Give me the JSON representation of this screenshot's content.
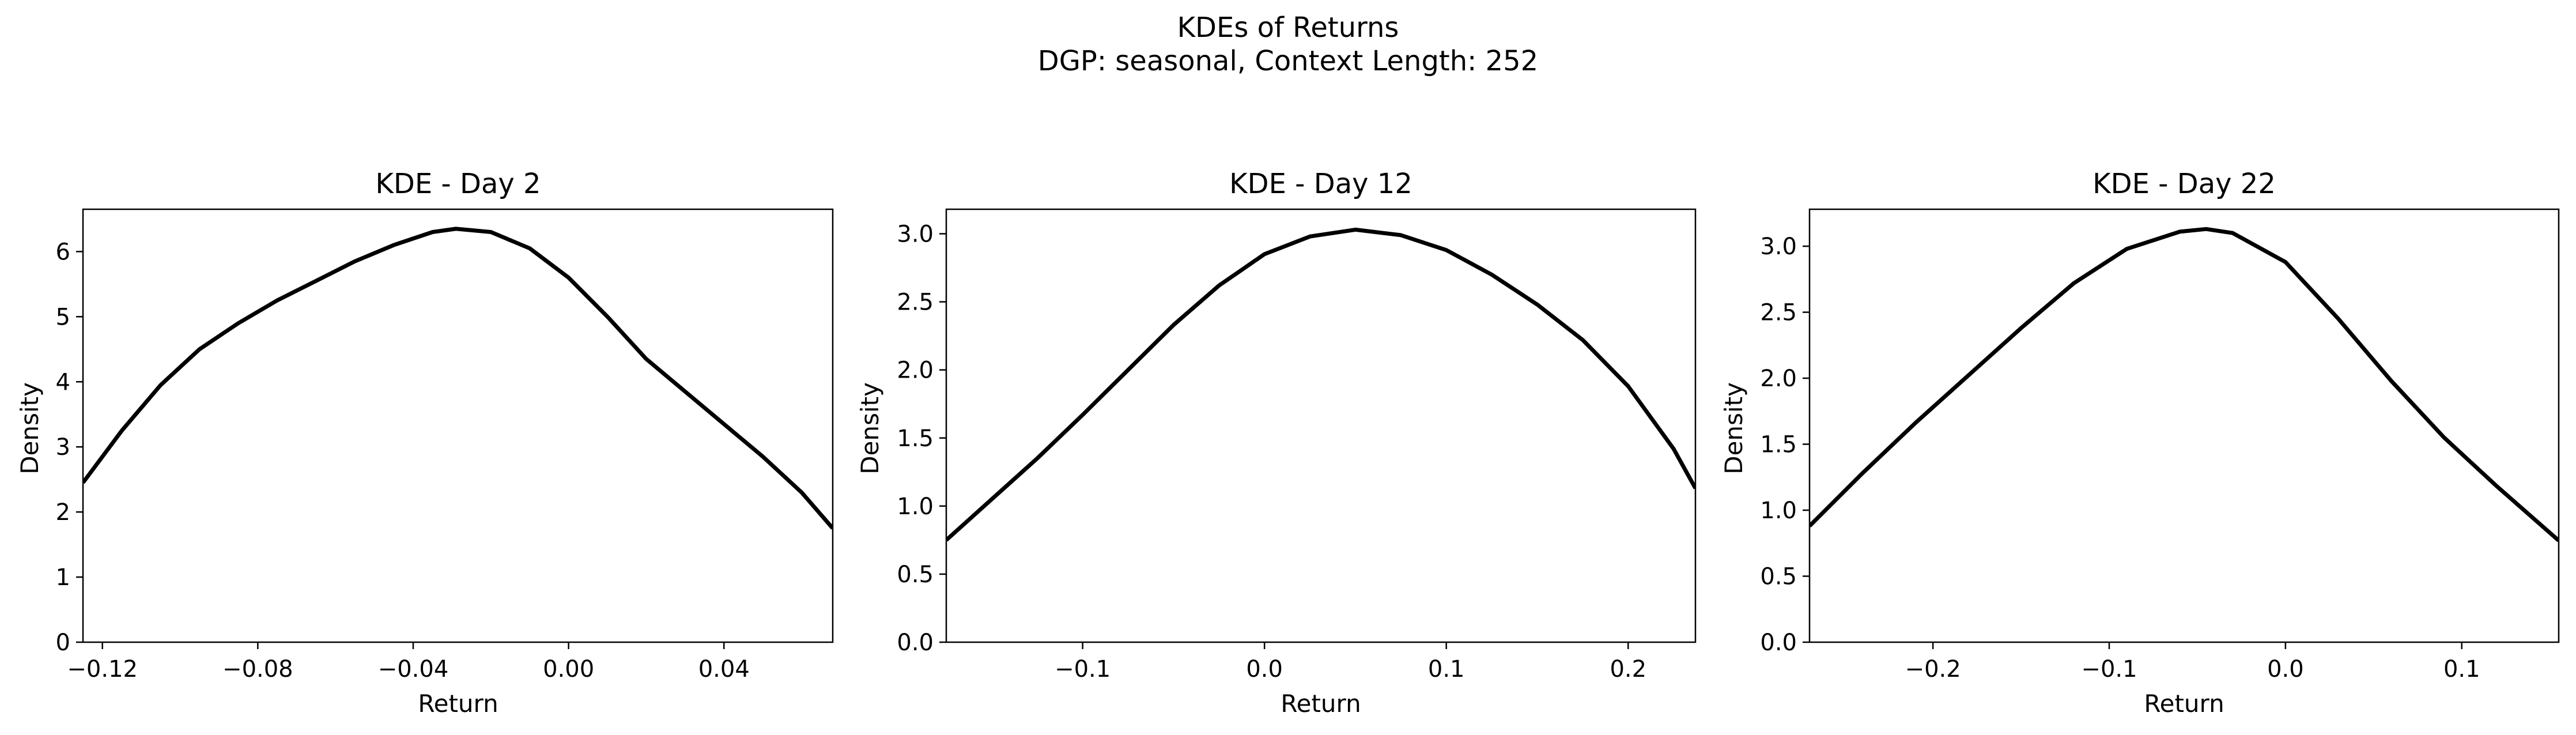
{
  "figure": {
    "title_line1": "KDEs of Returns",
    "title_line2": "DGP: seasonal, Context Length: 252"
  },
  "chart_data": [
    {
      "type": "line",
      "title": "KDE - Day 2",
      "xlabel": "Return",
      "ylabel": "Density",
      "xlim": [
        -0.125,
        0.068
      ],
      "ylim": [
        0,
        6.65
      ],
      "xticks": [
        -0.12,
        -0.08,
        -0.04,
        0.0,
        0.04
      ],
      "xtick_labels": [
        "−0.12",
        "−0.08",
        "−0.04",
        "0.00",
        "0.04"
      ],
      "yticks": [
        0,
        1,
        2,
        3,
        4,
        5,
        6
      ],
      "ytick_labels": [
        "0",
        "1",
        "2",
        "3",
        "4",
        "5",
        "6"
      ],
      "line_color": "#000000",
      "grid": false,
      "series": [
        {
          "x": [
            -0.125,
            -0.115,
            -0.105,
            -0.095,
            -0.085,
            -0.075,
            -0.065,
            -0.055,
            -0.045,
            -0.035,
            -0.029,
            -0.02,
            -0.01,
            0.0,
            0.01,
            0.02,
            0.03,
            0.04,
            0.05,
            0.06,
            0.068
          ],
          "y": [
            2.45,
            3.25,
            3.95,
            4.5,
            4.9,
            5.25,
            5.55,
            5.85,
            6.1,
            6.3,
            6.35,
            6.3,
            6.05,
            5.6,
            5.0,
            4.35,
            3.85,
            3.35,
            2.85,
            2.3,
            1.75
          ]
        }
      ]
    },
    {
      "type": "line",
      "title": "KDE - Day 12",
      "xlabel": "Return",
      "ylabel": "Density",
      "xlim": [
        -0.175,
        0.237
      ],
      "ylim": [
        0,
        3.18
      ],
      "xticks": [
        -0.1,
        0.0,
        0.1,
        0.2
      ],
      "xtick_labels": [
        "−0.1",
        "0.0",
        "0.1",
        "0.2"
      ],
      "yticks": [
        0.0,
        0.5,
        1.0,
        1.5,
        2.0,
        2.5,
        3.0
      ],
      "ytick_labels": [
        "0.0",
        "0.5",
        "1.0",
        "1.5",
        "2.0",
        "2.5",
        "3.0"
      ],
      "line_color": "#000000",
      "grid": false,
      "series": [
        {
          "x": [
            -0.175,
            -0.15,
            -0.125,
            -0.1,
            -0.075,
            -0.05,
            -0.025,
            0.0,
            0.025,
            0.05,
            0.075,
            0.1,
            0.125,
            0.15,
            0.175,
            0.2,
            0.225,
            0.237
          ],
          "y": [
            0.75,
            1.05,
            1.35,
            1.67,
            2.0,
            2.33,
            2.62,
            2.85,
            2.98,
            3.03,
            2.99,
            2.88,
            2.7,
            2.48,
            2.22,
            1.88,
            1.42,
            1.13
          ]
        }
      ]
    },
    {
      "type": "line",
      "title": "KDE - Day 22",
      "xlabel": "Return",
      "ylabel": "Density",
      "xlim": [
        -0.27,
        0.155
      ],
      "ylim": [
        0,
        3.28
      ],
      "xticks": [
        -0.2,
        -0.1,
        0.0,
        0.1
      ],
      "xtick_labels": [
        "−0.2",
        "−0.1",
        "0.0",
        "0.1"
      ],
      "yticks": [
        0.0,
        0.5,
        1.0,
        1.5,
        2.0,
        2.5,
        3.0
      ],
      "ytick_labels": [
        "0.0",
        "0.5",
        "1.0",
        "1.5",
        "2.0",
        "2.5",
        "3.0"
      ],
      "line_color": "#000000",
      "grid": false,
      "series": [
        {
          "x": [
            -0.27,
            -0.24,
            -0.21,
            -0.18,
            -0.15,
            -0.12,
            -0.09,
            -0.06,
            -0.045,
            -0.03,
            0.0,
            0.03,
            0.06,
            0.09,
            0.12,
            0.155
          ],
          "y": [
            0.88,
            1.28,
            1.66,
            2.02,
            2.38,
            2.72,
            2.98,
            3.11,
            3.13,
            3.1,
            2.88,
            2.45,
            1.98,
            1.55,
            1.18,
            0.77
          ]
        }
      ]
    }
  ]
}
